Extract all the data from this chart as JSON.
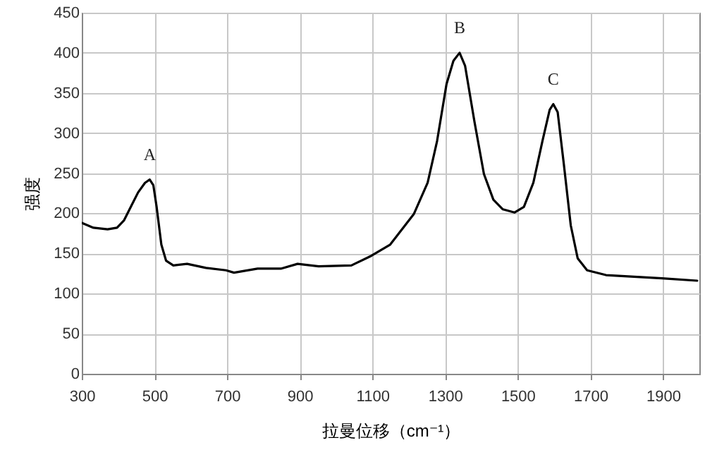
{
  "chart_data": {
    "type": "line",
    "xlabel": "拉曼位移（cm⁻¹）",
    "ylabel": "强度",
    "x": [
      300,
      332,
      371,
      397,
      416,
      435,
      455,
      474,
      487,
      497,
      506,
      519,
      532,
      552,
      590,
      642,
      697,
      719,
      784,
      848,
      894,
      952,
      1042,
      1097,
      1149,
      1214,
      1252,
      1278,
      1304,
      1323,
      1340,
      1355,
      1381,
      1407,
      1433,
      1459,
      1491,
      1517,
      1543,
      1568,
      1588,
      1598,
      1610,
      1627,
      1646,
      1665,
      1691,
      1743,
      1820,
      1897,
      1994
    ],
    "series": [
      {
        "color": "#000000",
        "values": [
          188,
          182,
          180,
          182,
          191,
          208,
          226,
          238,
          242,
          235,
          208,
          161,
          141,
          135,
          137,
          132,
          129,
          126,
          131,
          131,
          137,
          134,
          135,
          147,
          161,
          199,
          238,
          290,
          361,
          390,
          400,
          384,
          314,
          249,
          217,
          205,
          201,
          208,
          238,
          290,
          329,
          336,
          326,
          261,
          185,
          144,
          129,
          123,
          121,
          119,
          116
        ]
      }
    ],
    "xlim": [
      300,
      2000
    ],
    "xticks": [
      300,
      500,
      700,
      900,
      1100,
      1300,
      1500,
      1700,
      1900
    ],
    "ylim": [
      0,
      450
    ],
    "yticks": [
      0,
      50,
      100,
      150,
      200,
      250,
      300,
      350,
      400,
      450
    ],
    "grid": true,
    "marker": "none",
    "line_style": "solid",
    "annotations": [
      {
        "text": "A",
        "x": 487,
        "y": 242
      },
      {
        "text": "B",
        "x": 1340,
        "y": 400
      },
      {
        "text": "C",
        "x": 1598,
        "y": 336
      }
    ]
  }
}
